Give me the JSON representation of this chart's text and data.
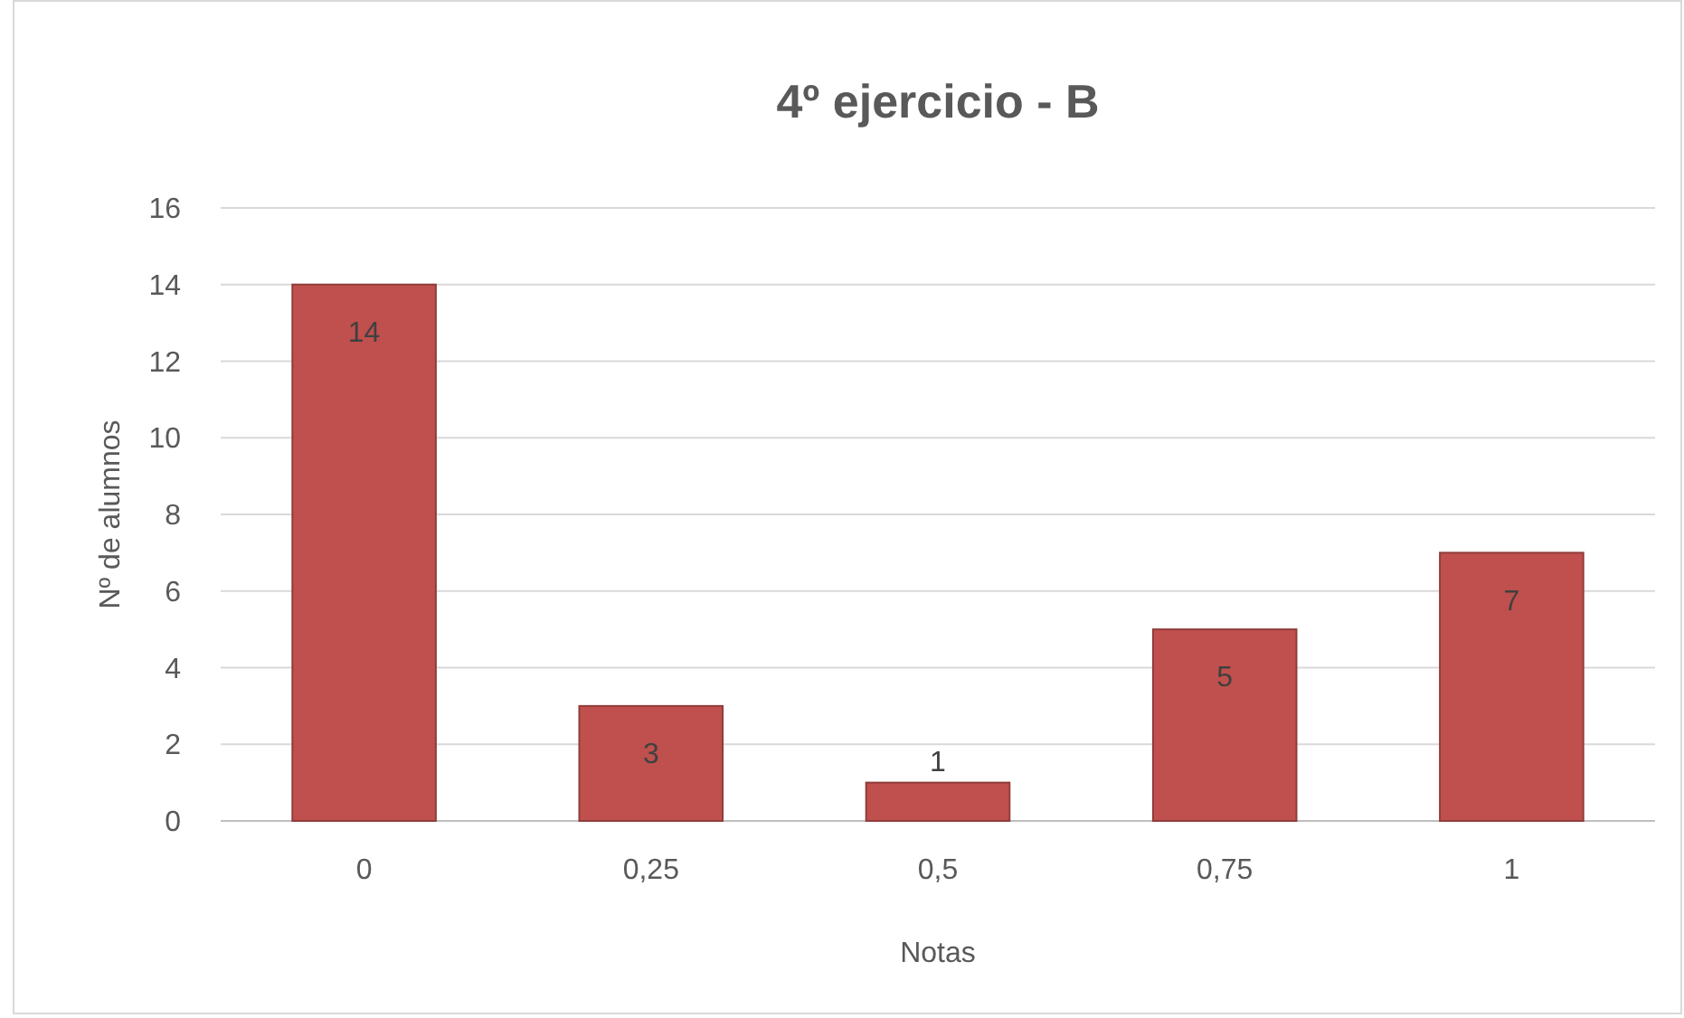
{
  "chart_data": {
    "type": "bar",
    "title": "4º ejercicio - B",
    "xlabel": "Notas",
    "ylabel": "Nº de alumnos",
    "categories": [
      "0",
      "0,25",
      "0,5",
      "0,75",
      "1"
    ],
    "values": [
      14,
      3,
      1,
      5,
      7
    ],
    "color": "#c0504d",
    "ylim": [
      0,
      16
    ],
    "yticks": [
      0,
      2,
      4,
      6,
      8,
      10,
      12,
      14,
      16
    ],
    "grid": "y",
    "data_labels": true
  }
}
